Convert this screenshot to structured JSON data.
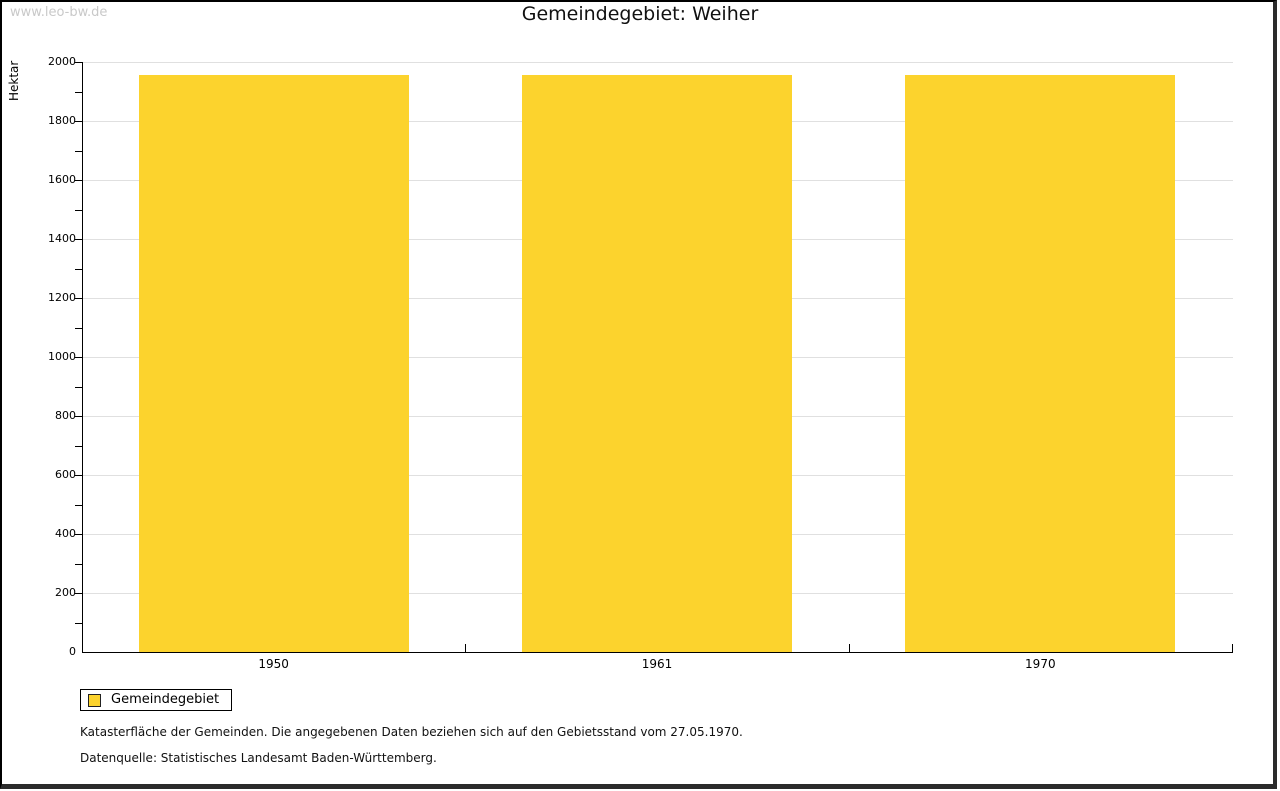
{
  "watermark": "www.leo-bw.de",
  "chart_data": {
    "type": "bar",
    "title": "Gemeindegebiet: Weiher",
    "categories": [
      "1950",
      "1961",
      "1970"
    ],
    "series": [
      {
        "name": "Gemeindegebiet",
        "values": [
          1956,
          1956,
          1956
        ]
      }
    ],
    "xlabel": "",
    "ylabel": "Hektar",
    "ylim": [
      0,
      2000
    ],
    "y_major_step": 200,
    "y_minor_step": 100,
    "grid": true,
    "legend_position": "bottom-left",
    "colors": {
      "bar": "#fcd32d",
      "grid": "#e0e0e0",
      "axis": "#000000",
      "watermark": "#c9c9c9"
    }
  },
  "footnotes": [
    "Katasterfläche der Gemeinden. Die angegebenen Daten beziehen sich auf den Gebietsstand vom 27.05.1970.",
    "Datenquelle: Statistisches Landesamt Baden-Württemberg."
  ]
}
